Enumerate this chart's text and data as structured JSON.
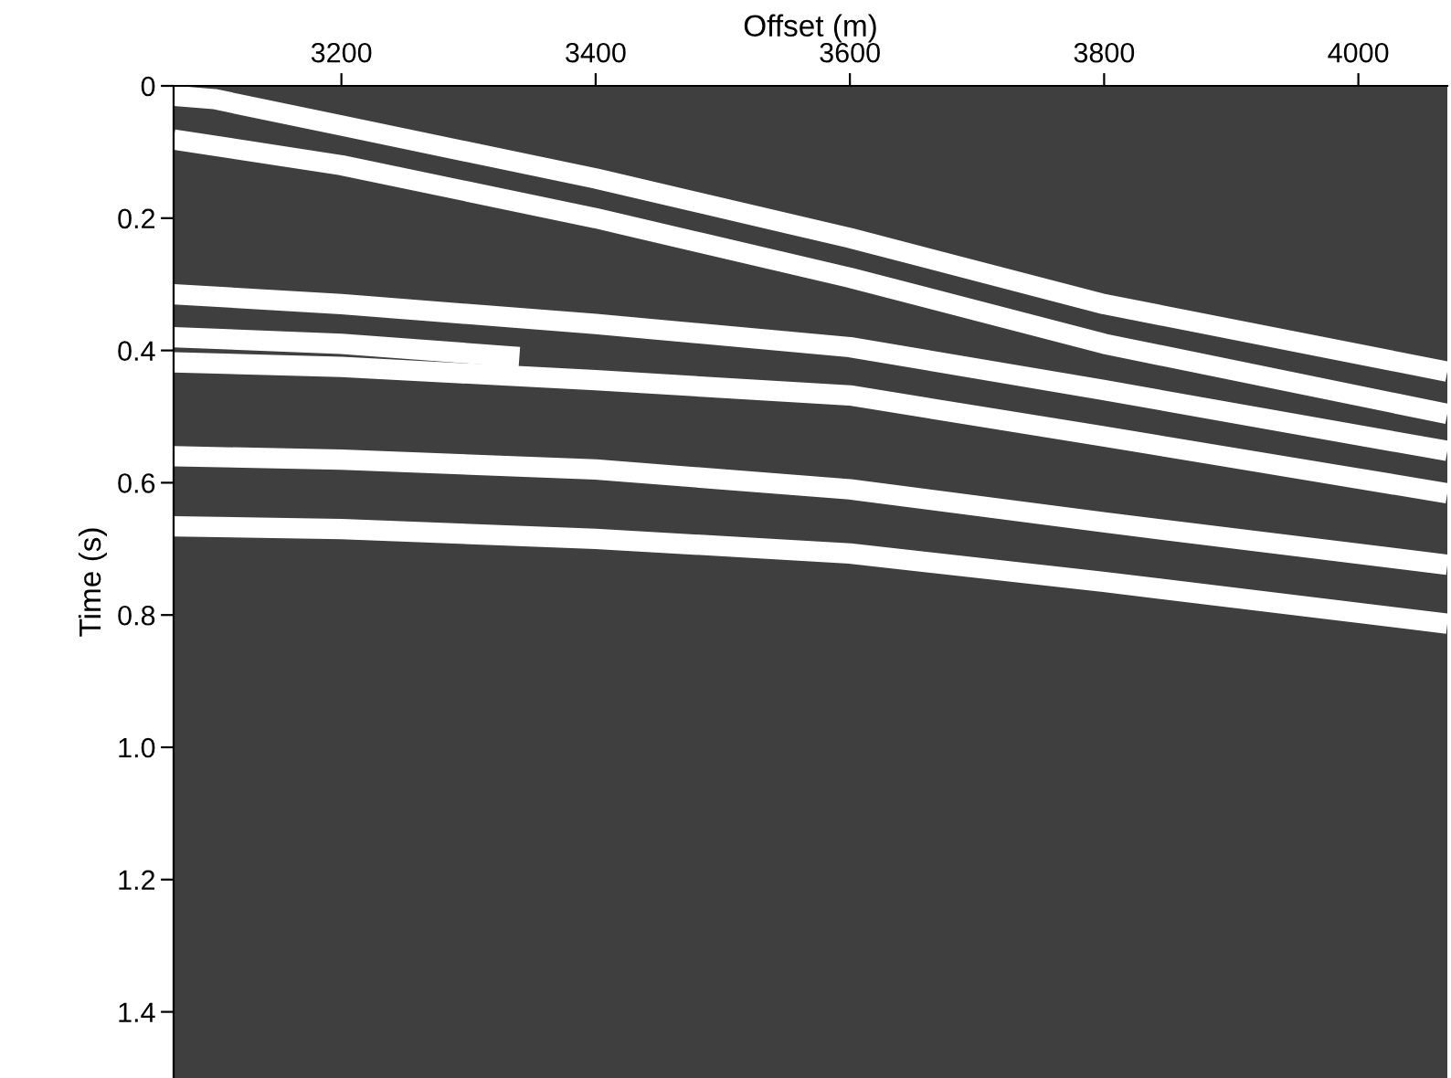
{
  "chart_data": {
    "type": "line",
    "xlabel": "Offset (m)",
    "ylabel": "Time (s)",
    "xlim": [
      3068,
      4070
    ],
    "ylim": [
      1.5,
      0
    ],
    "xticks": [
      3200,
      3400,
      3600,
      3800,
      4000
    ],
    "yticks": [
      0,
      0.2,
      0.4,
      0.6,
      0.8,
      {
        "value": 1.0,
        "label": "1.0"
      },
      1.2,
      1.4
    ],
    "grid": false,
    "legend": false,
    "marker": "none",
    "line_style": "solid",
    "series": [
      {
        "color": "#ffffff",
        "x": [
          3068,
          3100,
          3200,
          3400,
          3600,
          3800,
          4070
        ],
        "values": [
          0.015,
          0.02,
          0.06,
          0.14,
          0.23,
          0.33,
          0.432
        ]
      },
      {
        "color": "#ffffff",
        "x": [
          3068,
          3200,
          3400,
          3600,
          3800,
          4070
        ],
        "values": [
          0.081,
          0.12,
          0.2,
          0.29,
          0.39,
          0.496
        ]
      },
      {
        "color": "#ffffff",
        "x": [
          3068,
          3200,
          3400,
          3600,
          3800,
          4070
        ],
        "values": [
          0.315,
          0.33,
          0.36,
          0.395,
          0.46,
          0.552
        ]
      },
      {
        "color": "#ffffff",
        "x": [
          3068,
          3200,
          3340
        ],
        "values": [
          0.38,
          0.39,
          0.41
        ]
      },
      {
        "color": "#ffffff",
        "x": [
          3068,
          3200,
          3400,
          3600,
          3800,
          4070
        ],
        "values": [
          0.418,
          0.425,
          0.445,
          0.468,
          0.53,
          0.616
        ]
      },
      {
        "color": "#ffffff",
        "x": [
          3068,
          3200,
          3400,
          3600,
          3800,
          4070
        ],
        "values": [
          0.56,
          0.565,
          0.58,
          0.61,
          0.66,
          0.724
        ]
      },
      {
        "color": "#ffffff",
        "x": [
          3068,
          3200,
          3400,
          3600,
          3800,
          4070
        ],
        "values": [
          0.666,
          0.67,
          0.685,
          0.707,
          0.75,
          0.813
        ]
      }
    ]
  }
}
